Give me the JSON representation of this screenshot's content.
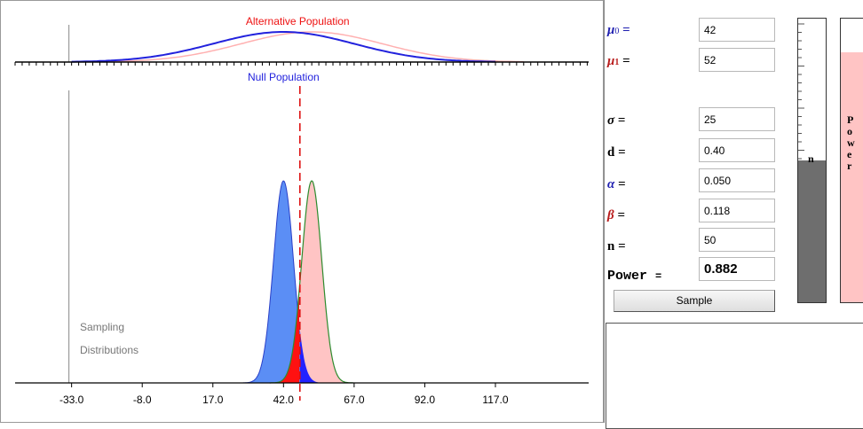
{
  "chart_data": {
    "type": "area",
    "x_ticks": [
      -33.0,
      -8.0,
      17.0,
      42.0,
      67.0,
      92.0,
      117.0
    ],
    "x_tick_labels": [
      "-33.0",
      "-8.0",
      "17.0",
      "42.0",
      "67.0",
      "92.0",
      "117.0"
    ],
    "xlim": [
      -53,
      150
    ],
    "critical_value": 47.8,
    "top_panel": {
      "title": "Alternative Population",
      "subtitle": "Null Population",
      "series": [
        {
          "name": "Null Population",
          "mean": 42,
          "sd": 25,
          "color": "#2222dd"
        },
        {
          "name": "Alternative Population",
          "mean": 52,
          "sd": 25,
          "color": "#ffb0b0"
        }
      ]
    },
    "bottom_panel": {
      "caption_line1": "Sampling",
      "caption_line2": "Distributions",
      "series": [
        {
          "name": "Null sampling distribution",
          "mean": 42,
          "se": 3.54,
          "color": "#5b8ef5"
        },
        {
          "name": "Alternative sampling distribution",
          "mean": 52,
          "se": 3.54,
          "color": "#ffc4c4",
          "outline": "#2e8b2e"
        }
      ]
    }
  },
  "params": {
    "mu0_label": "μ",
    "mu0_sub": "0",
    "mu0_value": "42",
    "mu1_label": "μ",
    "mu1_sub": "1",
    "mu1_value": "52",
    "sigma_label": "σ",
    "sigma_value": "25",
    "d_label": "d",
    "d_value": "0.40",
    "alpha_label": "α",
    "alpha_value": "0.050",
    "beta_label": "β",
    "beta_value": "0.118",
    "n_label": "n",
    "n_value": "50",
    "power_label": "Power",
    "power_value": "0.882",
    "eq": "="
  },
  "sample_button": "Sample",
  "meters": {
    "n_caption": "n",
    "n_level": 0.5,
    "power_caption": "Power",
    "power_level": 0.882
  },
  "colors": {
    "mu0": "#1f1fb0",
    "mu1": "#b81c1c",
    "alpha": "#1f1fb0",
    "beta": "#b81c1c",
    "n_fill": "#6e6e6e",
    "power_fill": "#ffc4c4",
    "critical_line": "#dd1111",
    "alpha_region": "#2222ff",
    "beta_region": "#ff1111"
  }
}
